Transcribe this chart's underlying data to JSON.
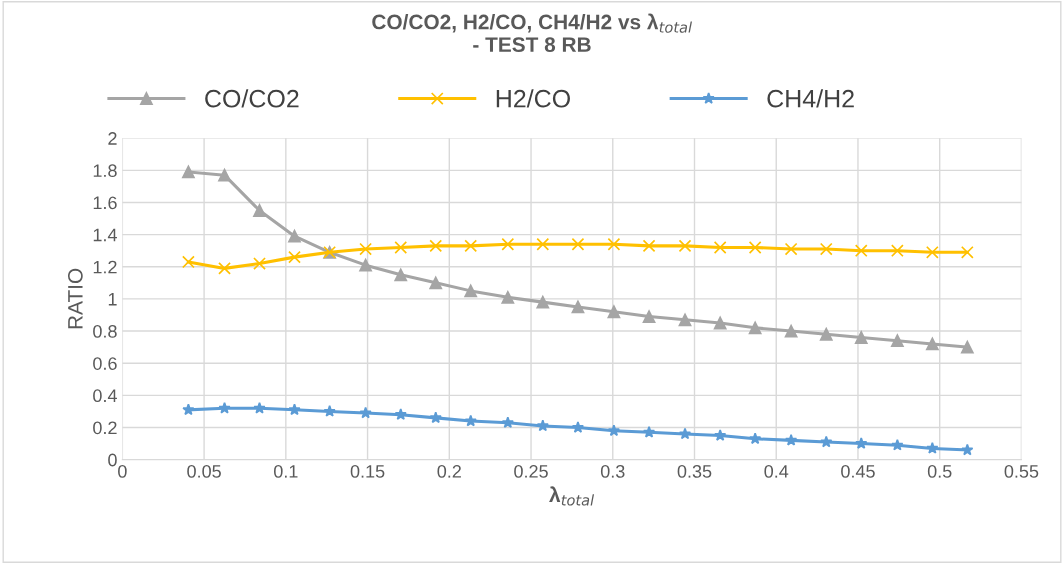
{
  "chart_data": {
    "type": "line",
    "title": "CO/CO2, H2/CO, CH4/H2 vs λ$_{total}$\n- TEST 8 RB",
    "xlabel": "λ$_{total}$",
    "ylabel": "RATIO",
    "x": [
      0.0404,
      0.0625,
      0.0839,
      0.1053,
      0.1268,
      0.1488,
      0.1703,
      0.1917,
      0.2131,
      0.2358,
      0.2572,
      0.2787,
      0.3007,
      0.3222,
      0.3442,
      0.3657,
      0.3871,
      0.4091,
      0.4306,
      0.452,
      0.4741,
      0.4955,
      0.5169
    ],
    "series": [
      {
        "name": "CO/CO2",
        "color": "#a5a5a5",
        "marker": "triangle",
        "values": [
          1.79,
          1.77,
          1.55,
          1.39,
          1.29,
          1.21,
          1.15,
          1.1,
          1.05,
          1.01,
          0.98,
          0.95,
          0.92,
          0.89,
          0.87,
          0.85,
          0.82,
          0.8,
          0.78,
          0.76,
          0.74,
          0.72,
          0.7
        ]
      },
      {
        "name": "H2/CO",
        "color": "#ffc000",
        "marker": "cross",
        "values": [
          1.23,
          1.19,
          1.22,
          1.26,
          1.29,
          1.31,
          1.32,
          1.33,
          1.33,
          1.34,
          1.34,
          1.34,
          1.34,
          1.33,
          1.33,
          1.32,
          1.32,
          1.31,
          1.31,
          1.3,
          1.3,
          1.29,
          1.29
        ]
      },
      {
        "name": "CH4/H2",
        "color": "#5b9bd5",
        "marker": "star",
        "values": [
          0.31,
          0.32,
          0.32,
          0.31,
          0.3,
          0.29,
          0.28,
          0.26,
          0.24,
          0.23,
          0.21,
          0.2,
          0.18,
          0.17,
          0.16,
          0.15,
          0.13,
          0.12,
          0.11,
          0.1,
          0.09,
          0.07,
          0.06
        ]
      }
    ],
    "xlim": [
      0,
      0.55
    ],
    "xticks": [
      0,
      0.05,
      0.1,
      0.15,
      0.2,
      0.25,
      0.3,
      0.35,
      0.4,
      0.45,
      0.5,
      0.55
    ],
    "ylim": [
      0,
      2
    ],
    "yticks": [
      0,
      0.2,
      0.4,
      0.6,
      0.8,
      1,
      1.2,
      1.4,
      1.6,
      1.8,
      2
    ],
    "grid": true,
    "legend": "top",
    "line_style": "solid"
  }
}
